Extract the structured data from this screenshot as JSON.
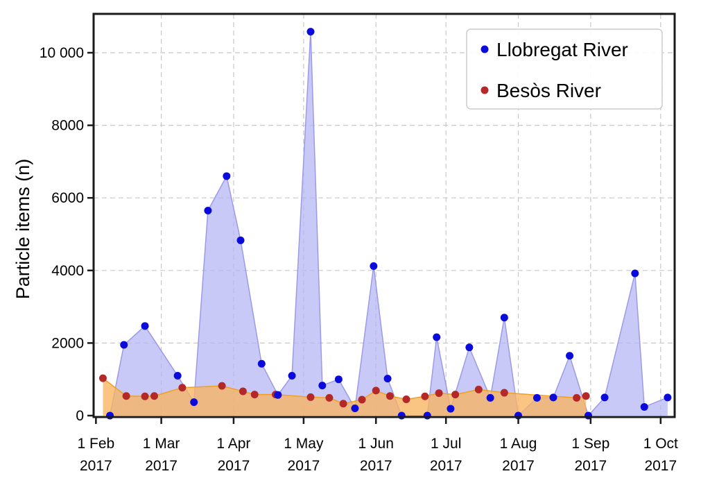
{
  "chart_data": {
    "type": "area",
    "ylabel": "Particle items (n)",
    "xlabel": "",
    "title": "",
    "xlim": [
      "2017-01-31",
      "2017-10-07"
    ],
    "ylim": [
      0,
      11000
    ],
    "grid": true,
    "legend_position": "top-right",
    "x_ticks": [
      {
        "date": "2017-02-01",
        "line1": "1 Feb",
        "line2": "2017"
      },
      {
        "date": "2017-03-01",
        "line1": "1 Mar",
        "line2": "2017"
      },
      {
        "date": "2017-04-01",
        "line1": "1 Apr",
        "line2": "2017"
      },
      {
        "date": "2017-05-01",
        "line1": "1 May",
        "line2": "2017"
      },
      {
        "date": "2017-06-01",
        "line1": "1 Jun",
        "line2": "2017"
      },
      {
        "date": "2017-07-01",
        "line1": "1 Jul",
        "line2": "2017"
      },
      {
        "date": "2017-08-01",
        "line1": "1 Aug",
        "line2": "2017"
      },
      {
        "date": "2017-09-01",
        "line1": "1 Sep",
        "line2": "2017"
      },
      {
        "date": "2017-10-01",
        "line1": "1 Oct",
        "line2": "2017"
      }
    ],
    "y_ticks": [
      {
        "value": 0,
        "label": "0"
      },
      {
        "value": 2000,
        "label": "2000"
      },
      {
        "value": 4000,
        "label": "4000"
      },
      {
        "value": 6000,
        "label": "6000"
      },
      {
        "value": 8000,
        "label": "8000"
      },
      {
        "value": 10000,
        "label": "10 000"
      }
    ],
    "series": [
      {
        "name": "Llobregat River",
        "marker_color": "#0a0adc",
        "fill_color": "#b4b4f5",
        "line_color": "#9a9ae8",
        "points": [
          {
            "date": "2017-02-07",
            "value": 0
          },
          {
            "date": "2017-02-13",
            "value": 1950
          },
          {
            "date": "2017-02-22",
            "value": 2470
          },
          {
            "date": "2017-03-08",
            "value": 1100
          },
          {
            "date": "2017-03-15",
            "value": 370
          },
          {
            "date": "2017-03-21",
            "value": 5650
          },
          {
            "date": "2017-03-29",
            "value": 6600
          },
          {
            "date": "2017-04-04",
            "value": 4830
          },
          {
            "date": "2017-04-13",
            "value": 1430
          },
          {
            "date": "2017-04-20",
            "value": 570
          },
          {
            "date": "2017-04-26",
            "value": 1100
          },
          {
            "date": "2017-05-04",
            "value": 10580
          },
          {
            "date": "2017-05-09",
            "value": 830
          },
          {
            "date": "2017-05-16",
            "value": 1000
          },
          {
            "date": "2017-05-23",
            "value": 200
          },
          {
            "date": "2017-05-31",
            "value": 4120
          },
          {
            "date": "2017-06-06",
            "value": 1020
          },
          {
            "date": "2017-06-12",
            "value": 0
          },
          {
            "date": "2017-06-23",
            "value": 0
          },
          {
            "date": "2017-06-27",
            "value": 2160
          },
          {
            "date": "2017-07-03",
            "value": 190
          },
          {
            "date": "2017-07-11",
            "value": 1880
          },
          {
            "date": "2017-07-20",
            "value": 490
          },
          {
            "date": "2017-07-26",
            "value": 2700
          },
          {
            "date": "2017-08-01",
            "value": 0
          },
          {
            "date": "2017-08-09",
            "value": 490
          },
          {
            "date": "2017-08-16",
            "value": 500
          },
          {
            "date": "2017-08-23",
            "value": 1650
          },
          {
            "date": "2017-08-31",
            "value": 0
          },
          {
            "date": "2017-09-07",
            "value": 500
          },
          {
            "date": "2017-09-20",
            "value": 3920
          },
          {
            "date": "2017-09-24",
            "value": 240
          },
          {
            "date": "2017-10-04",
            "value": 500
          }
        ]
      },
      {
        "name": "Besòs River",
        "marker_color": "#b42828",
        "fill_color": "#f9b360",
        "line_color": "#f0a020",
        "points": [
          {
            "date": "2017-02-04",
            "value": 1030
          },
          {
            "date": "2017-02-14",
            "value": 540
          },
          {
            "date": "2017-02-22",
            "value": 530
          },
          {
            "date": "2017-02-26",
            "value": 540
          },
          {
            "date": "2017-03-10",
            "value": 770
          },
          {
            "date": "2017-03-27",
            "value": 820
          },
          {
            "date": "2017-04-05",
            "value": 670
          },
          {
            "date": "2017-04-10",
            "value": 580
          },
          {
            "date": "2017-04-19",
            "value": 580
          },
          {
            "date": "2017-05-04",
            "value": 510
          },
          {
            "date": "2017-05-12",
            "value": 490
          },
          {
            "date": "2017-05-18",
            "value": 330
          },
          {
            "date": "2017-05-26",
            "value": 440
          },
          {
            "date": "2017-06-01",
            "value": 690
          },
          {
            "date": "2017-06-07",
            "value": 540
          },
          {
            "date": "2017-06-14",
            "value": 450
          },
          {
            "date": "2017-06-22",
            "value": 530
          },
          {
            "date": "2017-06-28",
            "value": 620
          },
          {
            "date": "2017-07-05",
            "value": 580
          },
          {
            "date": "2017-07-15",
            "value": 720
          },
          {
            "date": "2017-07-26",
            "value": 630
          },
          {
            "date": "2017-08-26",
            "value": 490
          },
          {
            "date": "2017-08-30",
            "value": 540
          }
        ]
      }
    ]
  }
}
